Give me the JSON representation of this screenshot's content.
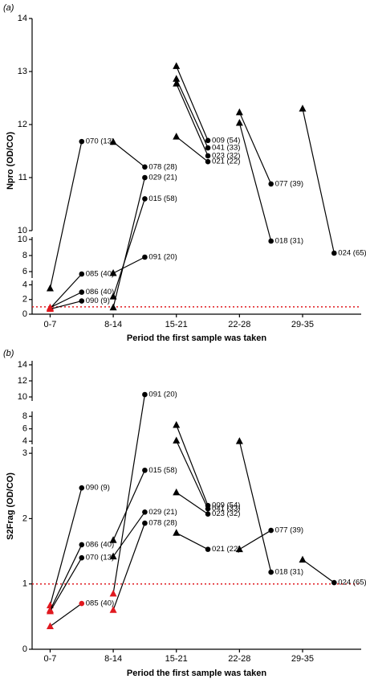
{
  "chart_data": [
    {
      "type": "line",
      "title": "(a)",
      "y_label": "Npro (OD/CO)",
      "x_label": "Period the first sample was taken",
      "xlim": [
        1.5,
        38
      ],
      "xticks": [
        {
          "value": 3.5,
          "label": "0-7"
        },
        {
          "value": 10.5,
          "label": "8-14"
        },
        {
          "value": 17.5,
          "label": "15-21"
        },
        {
          "value": 24.5,
          "label": "22-28"
        },
        {
          "value": 31.5,
          "label": "29-35"
        }
      ],
      "y_segments": [
        {
          "ylim": [
            0,
            4.6
          ],
          "yticks": [
            0,
            2,
            4
          ]
        },
        {
          "ylim": [
            5.2,
            10.3
          ],
          "yticks": [
            6,
            8,
            10
          ]
        },
        {
          "ylim": [
            10,
            14
          ],
          "yticks": [
            10,
            11,
            12,
            13,
            14
          ]
        }
      ],
      "cutoff": {
        "value": 1,
        "color": "#e0191f"
      },
      "series": [
        {
          "name": "070 (13)",
          "color": "#000000",
          "x": [
            3.5,
            7
          ],
          "values": [
            3.5,
            11.68
          ],
          "markers": [
            "triangle",
            "circle"
          ],
          "marker_colors": [
            "#000000",
            "#000000"
          ]
        },
        {
          "name": "085 (40)",
          "color": "#000000",
          "x": [
            3.5,
            7
          ],
          "values": [
            0.8,
            5.7
          ],
          "markers": [
            "triangle",
            "circle"
          ],
          "marker_colors": [
            "#e0191f",
            "#000000"
          ]
        },
        {
          "name": "086 (40)",
          "color": "#000000",
          "x": [
            3.5,
            7
          ],
          "values": [
            0.9,
            3.0
          ],
          "markers": [
            "triangle",
            "circle"
          ],
          "marker_colors": [
            "#e0191f",
            "#000000"
          ]
        },
        {
          "name": "090 (9)",
          "color": "#000000",
          "x": [
            3.5,
            7
          ],
          "values": [
            0.7,
            1.8
          ],
          "markers": [
            "triangle",
            "circle"
          ],
          "marker_colors": [
            "#e0191f",
            "#000000"
          ]
        },
        {
          "name": "078 (28)",
          "color": "#000000",
          "x": [
            10.5,
            14
          ],
          "values": [
            11.67,
            11.2
          ],
          "markers": [
            "triangle",
            "circle"
          ],
          "marker_colors": [
            "#000000",
            "#000000"
          ]
        },
        {
          "name": "029 (21)",
          "color": "#000000",
          "x": [
            10.5,
            14
          ],
          "values": [
            0.9,
            11.0
          ],
          "markers": [
            "triangle",
            "circle"
          ],
          "marker_colors": [
            "#000000",
            "#000000"
          ]
        },
        {
          "name": "015 (58)",
          "color": "#000000",
          "x": [
            10.5,
            14
          ],
          "values": [
            2.4,
            10.6
          ],
          "markers": [
            "triangle",
            "circle"
          ],
          "marker_colors": [
            "#000000",
            "#000000"
          ]
        },
        {
          "name": "091 (20)",
          "color": "#000000",
          "x": [
            10.5,
            14
          ],
          "values": [
            5.8,
            7.8
          ],
          "markers": [
            "triangle",
            "circle"
          ],
          "marker_colors": [
            "#000000",
            "#000000"
          ]
        },
        {
          "name": "009 (54)",
          "color": "#000000",
          "x": [
            17.5,
            21
          ],
          "values": [
            13.1,
            11.7
          ],
          "markers": [
            "triangle",
            "circle"
          ],
          "marker_colors": [
            "#000000",
            "#000000"
          ]
        },
        {
          "name": "041 (33)",
          "color": "#000000",
          "x": [
            17.5,
            21
          ],
          "values": [
            12.86,
            11.56
          ],
          "markers": [
            "triangle",
            "circle"
          ],
          "marker_colors": [
            "#000000",
            "#000000"
          ]
        },
        {
          "name": "023 (32)",
          "color": "#000000",
          "x": [
            17.5,
            21
          ],
          "values": [
            12.77,
            11.41
          ],
          "markers": [
            "triangle",
            "circle"
          ],
          "marker_colors": [
            "#000000",
            "#000000"
          ]
        },
        {
          "name": "021 (22)",
          "color": "#000000",
          "x": [
            17.5,
            21
          ],
          "values": [
            11.77,
            11.3
          ],
          "markers": [
            "triangle",
            "circle"
          ],
          "marker_colors": [
            "#000000",
            "#000000"
          ]
        },
        {
          "name": "077 (39)",
          "color": "#000000",
          "x": [
            24.5,
            28
          ],
          "values": [
            12.23,
            10.88
          ],
          "markers": [
            "triangle",
            "circle"
          ],
          "marker_colors": [
            "#000000",
            "#000000"
          ]
        },
        {
          "name": "018 (31)",
          "color": "#000000",
          "x": [
            24.5,
            28
          ],
          "values": [
            12.03,
            9.8
          ],
          "markers": [
            "triangle",
            "circle"
          ],
          "marker_colors": [
            "#000000",
            "#000000"
          ]
        },
        {
          "name": "024 (65)",
          "color": "#000000",
          "x": [
            31.5,
            35
          ],
          "values": [
            12.3,
            8.3
          ],
          "markers": [
            "triangle",
            "circle"
          ],
          "marker_colors": [
            "#000000",
            "#000000"
          ]
        }
      ]
    },
    {
      "type": "line",
      "title": "(b)",
      "y_label": "S2Frag (OD/CO)",
      "x_label": "Period the first sample was taken",
      "xlim": [
        1.5,
        38
      ],
      "xticks": [
        {
          "value": 3.5,
          "label": "0-7"
        },
        {
          "value": 10.5,
          "label": "8-14"
        },
        {
          "value": 17.5,
          "label": "15-21"
        },
        {
          "value": 24.5,
          "label": "22-28"
        },
        {
          "value": 31.5,
          "label": "29-35"
        }
      ],
      "y_segments": [
        {
          "ylim": [
            0,
            3.1
          ],
          "yticks": [
            0,
            1,
            2,
            3
          ]
        },
        {
          "ylim": [
            3.5,
            8.8
          ],
          "yticks": [
            4,
            6,
            8
          ]
        },
        {
          "ylim": [
            9.5,
            14.5
          ],
          "yticks": [
            10,
            12,
            14
          ]
        }
      ],
      "cutoff": {
        "value": 1,
        "color": "#e0191f"
      },
      "series": [
        {
          "name": "090 (9)",
          "color": "#000000",
          "x": [
            3.5,
            7
          ],
          "values": [
            0.67,
            2.47
          ],
          "markers": [
            "triangle",
            "circle"
          ],
          "marker_colors": [
            "#e0191f",
            "#000000"
          ]
        },
        {
          "name": "086 (40)",
          "color": "#000000",
          "x": [
            3.5,
            7
          ],
          "values": [
            0.6,
            1.6
          ],
          "markers": [
            "triangle",
            "circle"
          ],
          "marker_colors": [
            "#e0191f",
            "#000000"
          ]
        },
        {
          "name": "070 (13)",
          "color": "#000000",
          "x": [
            3.5,
            7
          ],
          "values": [
            0.58,
            1.4
          ],
          "markers": [
            "triangle",
            "circle"
          ],
          "marker_colors": [
            "#e0191f",
            "#000000"
          ]
        },
        {
          "name": "085 (40)",
          "color": "#000000",
          "x": [
            3.5,
            7
          ],
          "values": [
            0.35,
            0.7
          ],
          "markers": [
            "triangle",
            "circle"
          ],
          "marker_colors": [
            "#e0191f",
            "#e0191f"
          ]
        },
        {
          "name": "091 (20)",
          "color": "#000000",
          "x": [
            10.5,
            14
          ],
          "values": [
            0.85,
            10.3
          ],
          "markers": [
            "triangle",
            "circle"
          ],
          "marker_colors": [
            "#e0191f",
            "#000000"
          ]
        },
        {
          "name": "015 (58)",
          "color": "#000000",
          "x": [
            10.5,
            14
          ],
          "values": [
            1.67,
            2.74
          ],
          "markers": [
            "triangle",
            "circle"
          ],
          "marker_colors": [
            "#000000",
            "#000000"
          ]
        },
        {
          "name": "029 (21)",
          "color": "#000000",
          "x": [
            10.5,
            14
          ],
          "values": [
            1.42,
            2.1
          ],
          "markers": [
            "triangle",
            "circle"
          ],
          "marker_colors": [
            "#000000",
            "#000000"
          ]
        },
        {
          "name": "078 (28)",
          "color": "#000000",
          "x": [
            10.5,
            14
          ],
          "values": [
            0.6,
            1.93
          ],
          "markers": [
            "triangle",
            "circle"
          ],
          "marker_colors": [
            "#e0191f",
            "#000000"
          ]
        },
        {
          "name": "009 (54)",
          "color": "#000000",
          "x": [
            17.5,
            21
          ],
          "values": [
            6.6,
            2.2
          ],
          "markers": [
            "triangle",
            "circle"
          ],
          "marker_colors": [
            "#000000",
            "#000000"
          ]
        },
        {
          "name": "041 (33)",
          "color": "#000000",
          "x": [
            17.5,
            21
          ],
          "values": [
            4.1,
            2.15
          ],
          "markers": [
            "triangle",
            "circle"
          ],
          "marker_colors": [
            "#000000",
            "#000000"
          ]
        },
        {
          "name": "023 (32)",
          "color": "#000000",
          "x": [
            17.5,
            21
          ],
          "values": [
            2.4,
            2.07
          ],
          "markers": [
            "triangle",
            "circle"
          ],
          "marker_colors": [
            "#000000",
            "#000000"
          ]
        },
        {
          "name": "021 (22)",
          "color": "#000000",
          "x": [
            17.5,
            21
          ],
          "values": [
            1.78,
            1.53
          ],
          "markers": [
            "triangle",
            "circle"
          ],
          "marker_colors": [
            "#000000",
            "#000000"
          ]
        },
        {
          "name": "077 (39)",
          "color": "#000000",
          "x": [
            24.5,
            28
          ],
          "values": [
            1.53,
            1.82
          ],
          "markers": [
            "triangle",
            "circle"
          ],
          "marker_colors": [
            "#000000",
            "#000000"
          ]
        },
        {
          "name": "018 (31)",
          "color": "#000000",
          "x": [
            24.5,
            28
          ],
          "values": [
            4.0,
            1.18
          ],
          "markers": [
            "triangle",
            "circle"
          ],
          "marker_colors": [
            "#000000",
            "#000000"
          ]
        },
        {
          "name": "024 (65)",
          "color": "#000000",
          "x": [
            31.5,
            35
          ],
          "values": [
            1.37,
            1.02
          ],
          "markers": [
            "triangle",
            "circle"
          ],
          "marker_colors": [
            "#000000",
            "#000000"
          ]
        }
      ]
    }
  ]
}
